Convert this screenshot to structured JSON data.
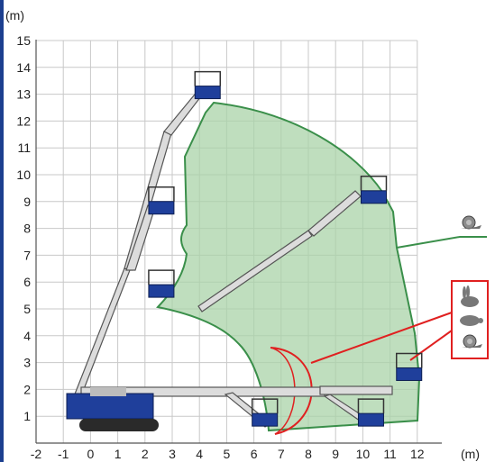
{
  "diagram": {
    "y_unit": "(m)",
    "x_unit": "(m)",
    "y_ticks": [
      "1",
      "2",
      "3",
      "4",
      "5",
      "6",
      "7",
      "8",
      "9",
      "10",
      "11",
      "12",
      "13",
      "14",
      "15"
    ],
    "x_ticks": [
      "-2",
      "-1",
      "0",
      "1",
      "2",
      "3",
      "4",
      "5",
      "6",
      "7",
      "8",
      "9",
      "10",
      "11",
      "12"
    ],
    "x_range": [
      -2,
      12
    ],
    "y_range": [
      0,
      15
    ],
    "grid": true,
    "colors": {
      "envelope_fill": "#a9d3a8",
      "envelope_stroke": "#3a8f4a",
      "machine_blue": "#1f3f9b",
      "boom_gray": "#d8d8d8",
      "rotation_red": "#e02020",
      "left_border": "#1c3f8f"
    },
    "legend_icons": [
      {
        "name": "snail-icon",
        "speed": "slow",
        "panel": "green"
      },
      {
        "name": "rabbit-icon",
        "speed": "fast",
        "panel": "red"
      },
      {
        "name": "turtle-icon",
        "speed": "medium",
        "panel": "red"
      },
      {
        "name": "snail-icon",
        "speed": "slow",
        "panel": "red"
      }
    ]
  }
}
